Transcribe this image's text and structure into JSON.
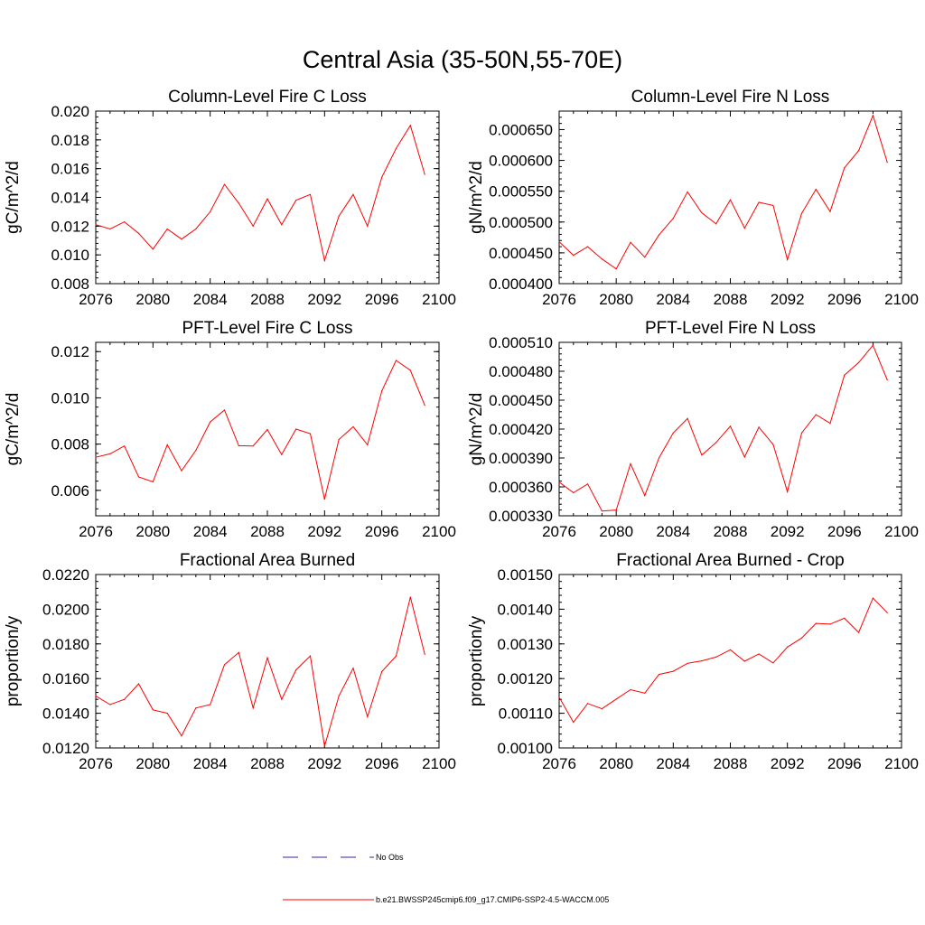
{
  "title": "Central Asia (35-50N,55-70E)",
  "legend": [
    {
      "label": "No Obs",
      "color": "#2a2aa8",
      "style": "dashed"
    },
    {
      "label": "b.e21.BWSSP245cmip6.f09_g17.CMIP6-SSP2-4.5-WACCM.005",
      "color": "#ff0000",
      "style": "solid"
    }
  ],
  "chart_data": [
    {
      "type": "line",
      "title": "Column-Level Fire C Loss",
      "ylabel": "gC/m^2/d",
      "xlim": [
        2076,
        2100
      ],
      "ylim": [
        0.008,
        0.02
      ],
      "xticks": [
        "2076",
        "2080",
        "2084",
        "2088",
        "2092",
        "2096",
        "2100"
      ],
      "yticks": [
        "0.008",
        "0.010",
        "0.012",
        "0.014",
        "0.016",
        "0.018",
        "0.020"
      ],
      "x": [
        2076,
        2077,
        2078,
        2079,
        2080,
        2081,
        2082,
        2083,
        2084,
        2085,
        2086,
        2087,
        2088,
        2089,
        2090,
        2091,
        2092,
        2093,
        2094,
        2095,
        2096,
        2097,
        2098,
        2099
      ],
      "series": [
        {
          "color": "#ff0000",
          "values": [
            0.0121,
            0.0118,
            0.0123,
            0.0115,
            0.0104,
            0.0118,
            0.0111,
            0.0118,
            0.013,
            0.0149,
            0.0136,
            0.012,
            0.0139,
            0.0121,
            0.0138,
            0.0142,
            0.0096,
            0.0127,
            0.0142,
            0.012,
            0.0154,
            0.0174,
            0.019,
            0.0156
          ]
        }
      ]
    },
    {
      "type": "line",
      "title": "Column-Level Fire N Loss",
      "ylabel": "gN/m^2/d",
      "xlim": [
        2076,
        2100
      ],
      "ylim": [
        0.0004,
        0.00068
      ],
      "xticks": [
        "2076",
        "2080",
        "2084",
        "2088",
        "2092",
        "2096",
        "2100"
      ],
      "yticks": [
        "0.000400",
        "0.000450",
        "0.000500",
        "0.000550",
        "0.000600",
        "0.000650"
      ],
      "x": [
        2076,
        2077,
        2078,
        2079,
        2080,
        2081,
        2082,
        2083,
        2084,
        2085,
        2086,
        2087,
        2088,
        2089,
        2090,
        2091,
        2092,
        2093,
        2094,
        2095,
        2096,
        2097,
        2098,
        2099
      ],
      "series": [
        {
          "color": "#ff0000",
          "values": [
            0.000468,
            0.000446,
            0.00046,
            0.00044,
            0.000424,
            0.000467,
            0.000443,
            0.000479,
            0.000506,
            0.000549,
            0.000515,
            0.000497,
            0.000536,
            0.00049,
            0.000532,
            0.000527,
            0.000439,
            0.000514,
            0.000553,
            0.000517,
            0.000588,
            0.000616,
            0.000673,
            0.000597
          ]
        }
      ]
    },
    {
      "type": "line",
      "title": "PFT-Level Fire C Loss",
      "ylabel": "gC/m^2/d",
      "xlim": [
        2076,
        2100
      ],
      "ylim": [
        0.0049,
        0.0124
      ],
      "xticks": [
        "2076",
        "2080",
        "2084",
        "2088",
        "2092",
        "2096",
        "2100"
      ],
      "yticks": [
        "0.006",
        "0.008",
        "0.010",
        "0.012"
      ],
      "x": [
        2076,
        2077,
        2078,
        2079,
        2080,
        2081,
        2082,
        2083,
        2084,
        2085,
        2086,
        2087,
        2088,
        2089,
        2090,
        2091,
        2092,
        2093,
        2094,
        2095,
        2096,
        2097,
        2098,
        2099
      ],
      "series": [
        {
          "color": "#ff0000",
          "values": [
            0.00743,
            0.00758,
            0.00792,
            0.00658,
            0.00637,
            0.00797,
            0.00685,
            0.00773,
            0.00896,
            0.00947,
            0.00793,
            0.00792,
            0.00863,
            0.00755,
            0.00865,
            0.00845,
            0.00562,
            0.0082,
            0.00875,
            0.00797,
            0.0103,
            0.01162,
            0.01119,
            0.00968
          ]
        }
      ]
    },
    {
      "type": "line",
      "title": "PFT-Level Fire N Loss",
      "ylabel": "gN/m^2/d",
      "xlim": [
        2076,
        2100
      ],
      "ylim": [
        0.00033,
        0.00051
      ],
      "xticks": [
        "2076",
        "2080",
        "2084",
        "2088",
        "2092",
        "2096",
        "2100"
      ],
      "yticks": [
        "0.000330",
        "0.000360",
        "0.000390",
        "0.000420",
        "0.000450",
        "0.000480",
        "0.000510"
      ],
      "x": [
        2076,
        2077,
        2078,
        2079,
        2080,
        2081,
        2082,
        2083,
        2084,
        2085,
        2086,
        2087,
        2088,
        2089,
        2090,
        2091,
        2092,
        2093,
        2094,
        2095,
        2096,
        2097,
        2098,
        2099
      ],
      "series": [
        {
          "color": "#ff0000",
          "values": [
            0.000365,
            0.000354,
            0.000363,
            0.000335,
            0.000336,
            0.000384,
            0.000351,
            0.00039,
            0.000416,
            0.000431,
            0.000393,
            0.000406,
            0.000423,
            0.000391,
            0.000422,
            0.000404,
            0.000355,
            0.000416,
            0.000435,
            0.000426,
            0.000476,
            0.000489,
            0.000507,
            0.000471
          ]
        }
      ]
    },
    {
      "type": "line",
      "title": "Fractional Area Burned",
      "ylabel": "proportion/y",
      "xlim": [
        2076,
        2100
      ],
      "ylim": [
        0.012,
        0.022
      ],
      "xticks": [
        "2076",
        "2080",
        "2084",
        "2088",
        "2092",
        "2096",
        "2100"
      ],
      "yticks": [
        "0.0120",
        "0.0140",
        "0.0160",
        "0.0180",
        "0.0200",
        "0.0220"
      ],
      "x": [
        2076,
        2077,
        2078,
        2079,
        2080,
        2081,
        2082,
        2083,
        2084,
        2085,
        2086,
        2087,
        2088,
        2089,
        2090,
        2091,
        2092,
        2093,
        2094,
        2095,
        2096,
        2097,
        2098,
        2099
      ],
      "series": [
        {
          "color": "#ff0000",
          "values": [
            0.015,
            0.0145,
            0.0148,
            0.0157,
            0.0142,
            0.014,
            0.0127,
            0.0143,
            0.0145,
            0.0168,
            0.0175,
            0.0143,
            0.0172,
            0.0148,
            0.0165,
            0.0173,
            0.0121,
            0.015,
            0.0166,
            0.0138,
            0.0164,
            0.0173,
            0.0207,
            0.0174
          ]
        }
      ]
    },
    {
      "type": "line",
      "title": "Fractional Area Burned - Crop",
      "ylabel": "proportion/y",
      "xlim": [
        2076,
        2100
      ],
      "ylim": [
        0.001,
        0.0015
      ],
      "xticks": [
        "2076",
        "2080",
        "2084",
        "2088",
        "2092",
        "2096",
        "2100"
      ],
      "yticks": [
        "0.00100",
        "0.00110",
        "0.00120",
        "0.00130",
        "0.00140",
        "0.00150"
      ],
      "x": [
        2076,
        2077,
        2078,
        2079,
        2080,
        2081,
        2082,
        2083,
        2084,
        2085,
        2086,
        2087,
        2088,
        2089,
        2090,
        2091,
        2092,
        2093,
        2094,
        2095,
        2096,
        2097,
        2098,
        2099
      ],
      "series": [
        {
          "color": "#ff0000",
          "values": [
            0.001146,
            0.001074,
            0.001128,
            0.001113,
            0.001141,
            0.001168,
            0.001158,
            0.001212,
            0.001221,
            0.001244,
            0.001251,
            0.001262,
            0.001283,
            0.00125,
            0.001271,
            0.001245,
            0.001291,
            0.001317,
            0.001359,
            0.001357,
            0.001374,
            0.001333,
            0.001432,
            0.00139
          ]
        }
      ]
    }
  ]
}
